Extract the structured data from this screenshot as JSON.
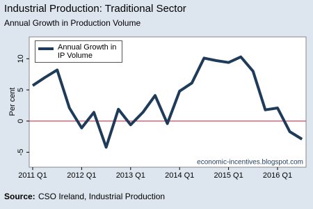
{
  "chart_data": {
    "type": "line",
    "title": "Industrial Production: Traditional Sector",
    "subtitle": "Annual Growth in Production Volume",
    "y_label": "Per cent",
    "categories": [
      "2011 Q1",
      null,
      null,
      null,
      "2012 Q1",
      null,
      null,
      null,
      "2013 Q1",
      null,
      null,
      null,
      "2014 Q1",
      null,
      null,
      null,
      "2015 Q1",
      null,
      null,
      null,
      "2016 Q1",
      null,
      null
    ],
    "series": [
      {
        "name": "Annual Growth in IP Volume",
        "color": "#1f3b5a",
        "values": [
          5.7,
          7.0,
          8.2,
          2.1,
          -1.1,
          1.4,
          -4.2,
          1.9,
          -0.6,
          1.4,
          4.1,
          -0.4,
          4.8,
          6.1,
          10.1,
          9.7,
          9.4,
          10.3,
          8.0,
          1.8,
          2.1,
          -1.7,
          -2.9
        ]
      }
    ],
    "ylim": [
      -7.4,
      13.5
    ],
    "yticks": [
      -5,
      0,
      5,
      10
    ],
    "reference_line": {
      "value": 0,
      "color": "#d0324f"
    },
    "legend": "top-left",
    "watermark": "economic-incentives.blogspot.com",
    "source": {
      "label": "Source:",
      "text": "CSO Ireland, Industrial Production"
    }
  }
}
